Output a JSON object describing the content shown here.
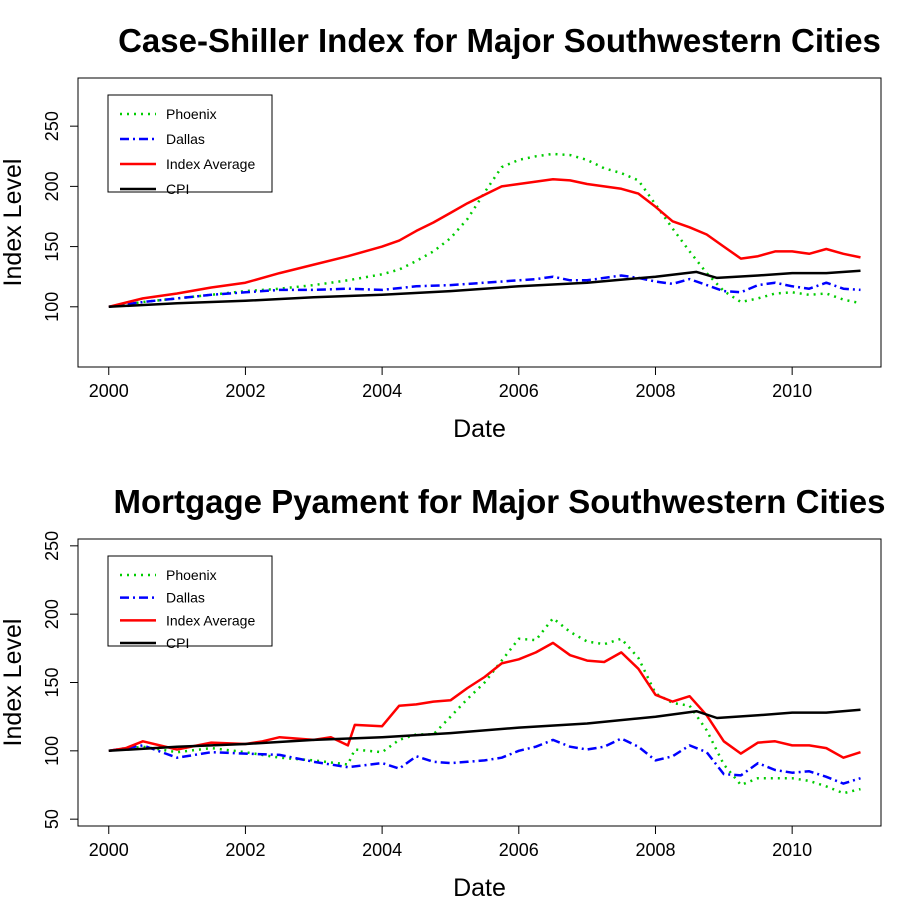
{
  "chart_data": [
    {
      "type": "line",
      "title": "Case-Shiller Index for Major Southwestern Cities",
      "xlabel": "Date",
      "ylabel": "Index Level",
      "xlim": [
        1999.55,
        2011.3
      ],
      "ylim": [
        50,
        290
      ],
      "xticks": [
        2000,
        2002,
        2004,
        2006,
        2008,
        2010
      ],
      "yticks": [
        100,
        150,
        200,
        250
      ],
      "legend": {
        "position": "top-left"
      },
      "series": [
        {
          "name": "Phoenix",
          "color": "#00cc00",
          "dash": "dotted",
          "x": [
            2000,
            2000.5,
            2001,
            2001.5,
            2002,
            2002.5,
            2003,
            2003.5,
            2004,
            2004.25,
            2004.5,
            2004.75,
            2005,
            2005.25,
            2005.5,
            2005.75,
            2006,
            2006.25,
            2006.5,
            2006.75,
            2007,
            2007.25,
            2007.5,
            2007.75,
            2008,
            2008.25,
            2008.5,
            2008.75,
            2009,
            2009.25,
            2009.5,
            2009.75,
            2010,
            2010.25,
            2010.5,
            2010.75,
            2011
          ],
          "y": [
            100,
            104,
            107,
            110,
            113,
            115,
            118,
            122,
            127,
            131,
            138,
            146,
            157,
            173,
            195,
            216,
            222,
            225,
            227,
            226,
            222,
            215,
            211,
            205,
            185,
            165,
            146,
            128,
            113,
            104,
            107,
            111,
            112,
            110,
            111,
            106,
            103
          ]
        },
        {
          "name": "Dallas",
          "color": "#0000ff",
          "dash": "dashdot",
          "x": [
            2000,
            2000.5,
            2001,
            2001.5,
            2002,
            2002.5,
            2003,
            2003.5,
            2004,
            2004.5,
            2005,
            2005.5,
            2006,
            2006.25,
            2006.5,
            2006.75,
            2007,
            2007.25,
            2007.5,
            2007.75,
            2008,
            2008.25,
            2008.5,
            2008.75,
            2009,
            2009.25,
            2009.5,
            2009.75,
            2010,
            2010.25,
            2010.5,
            2010.75,
            2011
          ],
          "y": [
            100,
            104,
            107,
            110,
            112,
            114,
            114,
            115,
            114,
            117,
            118,
            120,
            122,
            123,
            125,
            122,
            122,
            124,
            126,
            124,
            121,
            119,
            123,
            118,
            113,
            112,
            118,
            120,
            117,
            115,
            120,
            115,
            114
          ]
        },
        {
          "name": "Index Average",
          "color": "#ff0000",
          "dash": "solid",
          "x": [
            2000,
            2000.5,
            2001,
            2001.5,
            2002,
            2002.5,
            2003,
            2003.5,
            2004,
            2004.25,
            2004.5,
            2004.75,
            2005,
            2005.25,
            2005.5,
            2005.75,
            2006,
            2006.25,
            2006.5,
            2006.75,
            2007,
            2007.25,
            2007.5,
            2007.75,
            2008,
            2008.25,
            2008.5,
            2008.75,
            2009,
            2009.25,
            2009.5,
            2009.75,
            2010,
            2010.25,
            2010.5,
            2010.75,
            2011
          ],
          "y": [
            100,
            107,
            111,
            116,
            120,
            128,
            135,
            142,
            150,
            155,
            163,
            170,
            178,
            186,
            193,
            200,
            202,
            204,
            206,
            205,
            202,
            200,
            198,
            194,
            183,
            171,
            166,
            160,
            150,
            140,
            142,
            146,
            146,
            144,
            148,
            144,
            141
          ]
        },
        {
          "name": "CPI",
          "color": "#000000",
          "dash": "solid",
          "x": [
            2000,
            2001,
            2002,
            2003,
            2004,
            2005,
            2006,
            2007,
            2008,
            2008.6,
            2008.9,
            2009.5,
            2010,
            2010.5,
            2011
          ],
          "y": [
            100,
            103,
            105,
            108,
            110,
            113,
            117,
            120,
            125,
            129,
            124,
            126,
            128,
            128,
            130
          ]
        }
      ]
    },
    {
      "type": "line",
      "title": "Mortgage Pyament for Major Southwestern Cities",
      "xlabel": "Date",
      "ylabel": "Index Level",
      "xlim": [
        1999.55,
        2011.3
      ],
      "ylim": [
        45,
        255
      ],
      "xticks": [
        2000,
        2002,
        2004,
        2006,
        2008,
        2010
      ],
      "yticks": [
        50,
        100,
        150,
        200,
        250
      ],
      "legend": {
        "position": "top-left"
      },
      "series": [
        {
          "name": "Phoenix",
          "color": "#00cc00",
          "dash": "dotted",
          "x": [
            2000,
            2000.5,
            2001,
            2001.5,
            2002,
            2002.5,
            2003,
            2003.5,
            2003.6,
            2004,
            2004.25,
            2004.5,
            2004.75,
            2005,
            2005.25,
            2005.5,
            2005.75,
            2006,
            2006.25,
            2006.5,
            2006.75,
            2007,
            2007.25,
            2007.5,
            2007.75,
            2008,
            2008.25,
            2008.5,
            2008.75,
            2009,
            2009.25,
            2009.5,
            2009.75,
            2010,
            2010.25,
            2010.5,
            2010.75,
            2011
          ],
          "y": [
            100,
            103,
            99,
            102,
            99,
            95,
            93,
            90,
            101,
            99,
            108,
            112,
            112,
            125,
            138,
            150,
            166,
            182,
            181,
            197,
            187,
            180,
            178,
            182,
            168,
            142,
            135,
            133,
            115,
            90,
            75,
            80,
            80,
            80,
            78,
            74,
            69,
            72
          ]
        },
        {
          "name": "Dallas",
          "color": "#0000ff",
          "dash": "dashdot",
          "x": [
            2000,
            2000.5,
            2001,
            2001.5,
            2002,
            2002.5,
            2003,
            2003.5,
            2004,
            2004.25,
            2004.5,
            2004.75,
            2005,
            2005.25,
            2005.5,
            2005.75,
            2006,
            2006.25,
            2006.5,
            2006.75,
            2007,
            2007.25,
            2007.5,
            2007.75,
            2008,
            2008.25,
            2008.5,
            2008.75,
            2009,
            2009.25,
            2009.5,
            2009.75,
            2010,
            2010.25,
            2010.5,
            2010.75,
            2011
          ],
          "y": [
            100,
            104,
            95,
            99,
            98,
            97,
            92,
            88,
            91,
            87,
            96,
            92,
            91,
            92,
            93,
            95,
            100,
            103,
            108,
            103,
            101,
            103,
            109,
            103,
            93,
            96,
            104,
            99,
            83,
            82,
            91,
            86,
            84,
            85,
            81,
            76,
            80
          ]
        },
        {
          "name": "Index Average",
          "color": "#ff0000",
          "dash": "solid",
          "x": [
            2000,
            2000.25,
            2000.5,
            2001,
            2001.5,
            2002,
            2002.25,
            2002.5,
            2003,
            2003.25,
            2003.5,
            2003.6,
            2004,
            2004.25,
            2004.5,
            2004.75,
            2005,
            2005.25,
            2005.5,
            2005.75,
            2006,
            2006.25,
            2006.5,
            2006.75,
            2007,
            2007.25,
            2007.5,
            2007.75,
            2008,
            2008.25,
            2008.5,
            2008.75,
            2009,
            2009.25,
            2009.5,
            2009.75,
            2010,
            2010.25,
            2010.5,
            2010.75,
            2011
          ],
          "y": [
            100,
            102,
            107,
            101,
            106,
            105,
            107,
            110,
            108,
            110,
            104,
            119,
            118,
            133,
            134,
            136,
            137,
            146,
            154,
            164,
            167,
            172,
            179,
            170,
            166,
            165,
            172,
            160,
            141,
            136,
            140,
            126,
            107,
            98,
            106,
            107,
            104,
            104,
            102,
            95,
            99
          ]
        },
        {
          "name": "CPI",
          "color": "#000000",
          "dash": "solid",
          "x": [
            2000,
            2001,
            2002,
            2003,
            2004,
            2005,
            2006,
            2007,
            2008,
            2008.6,
            2008.9,
            2009.5,
            2010,
            2010.5,
            2011
          ],
          "y": [
            100,
            103,
            105,
            108,
            110,
            113,
            117,
            120,
            125,
            129,
            124,
            126,
            128,
            128,
            130
          ]
        }
      ]
    }
  ]
}
